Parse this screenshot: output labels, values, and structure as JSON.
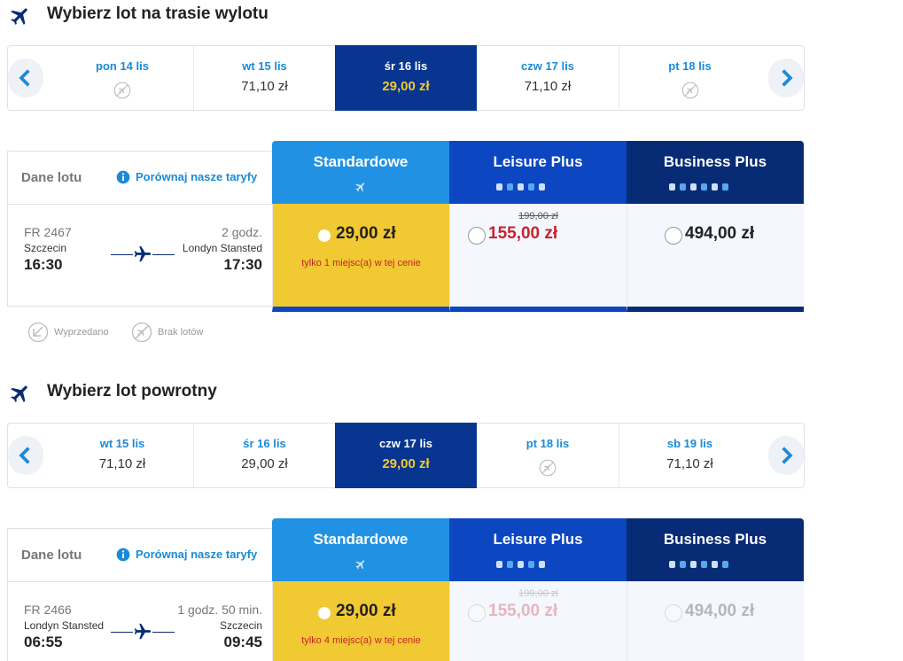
{
  "sections": [
    {
      "title": "Wybierz lot na trasie wylotu",
      "dates": [
        {
          "label": "pon 14 lis"
        },
        {
          "label": "wt 15 lis",
          "price": "71,10 zł"
        },
        {
          "label": "śr 16 lis",
          "price": "29,00 zł",
          "selected": true
        },
        {
          "label": "czw 17 lis",
          "price": "71,10 zł"
        },
        {
          "label": "pt 18 lis"
        }
      ],
      "details_label": "Dane lotu",
      "compare_link": "Porównaj nasze taryfy",
      "flight": {
        "number": "FR 2467",
        "from": "Szczecin",
        "departure": "16:30",
        "duration": "2 godz.",
        "to": "Londyn Stansted",
        "arrival": "17:30"
      },
      "fares": [
        {
          "name": "Standardowe",
          "price": "29,00 zł",
          "note": "tylko 1 miejsc(a) w tej cenie",
          "selected": true
        },
        {
          "name": "Leisure Plus",
          "old_price": "199,00 zł",
          "price": "155,00 zł"
        },
        {
          "name": "Business Plus",
          "price": "494,00 zł"
        }
      ]
    },
    {
      "title": "Wybierz lot powrotny",
      "dates": [
        {
          "label": "wt 15 lis",
          "price": "71,10 zł"
        },
        {
          "label": "śr 16 lis",
          "price": "29,00 zł"
        },
        {
          "label": "czw 17 lis",
          "price": "29,00 zł",
          "selected": true
        },
        {
          "label": "pt 18 lis"
        },
        {
          "label": "sb 19 lis",
          "price": "71,10 zł"
        }
      ],
      "details_label": "Dane lotu",
      "compare_link": "Porównaj nasze taryfy",
      "flight": {
        "number": "FR 2466",
        "from": "Londyn Stansted",
        "departure": "06:55",
        "duration": "1 godz. 50 min.",
        "to": "Szczecin",
        "arrival": "09:45"
      },
      "fares": [
        {
          "name": "Standardowe",
          "price": "29,00 zł",
          "note": "tylko 4 miejsc(a) w tej cenie",
          "selected": true
        },
        {
          "name": "Leisure Plus",
          "old_price": "199,00 zł",
          "price": "155,00 zł",
          "dimmed": true
        },
        {
          "name": "Business Plus",
          "price": "494,00 zł",
          "dimmed": true
        }
      ]
    }
  ],
  "legend": [
    "Wyprzedano",
    "Brak lotów"
  ]
}
